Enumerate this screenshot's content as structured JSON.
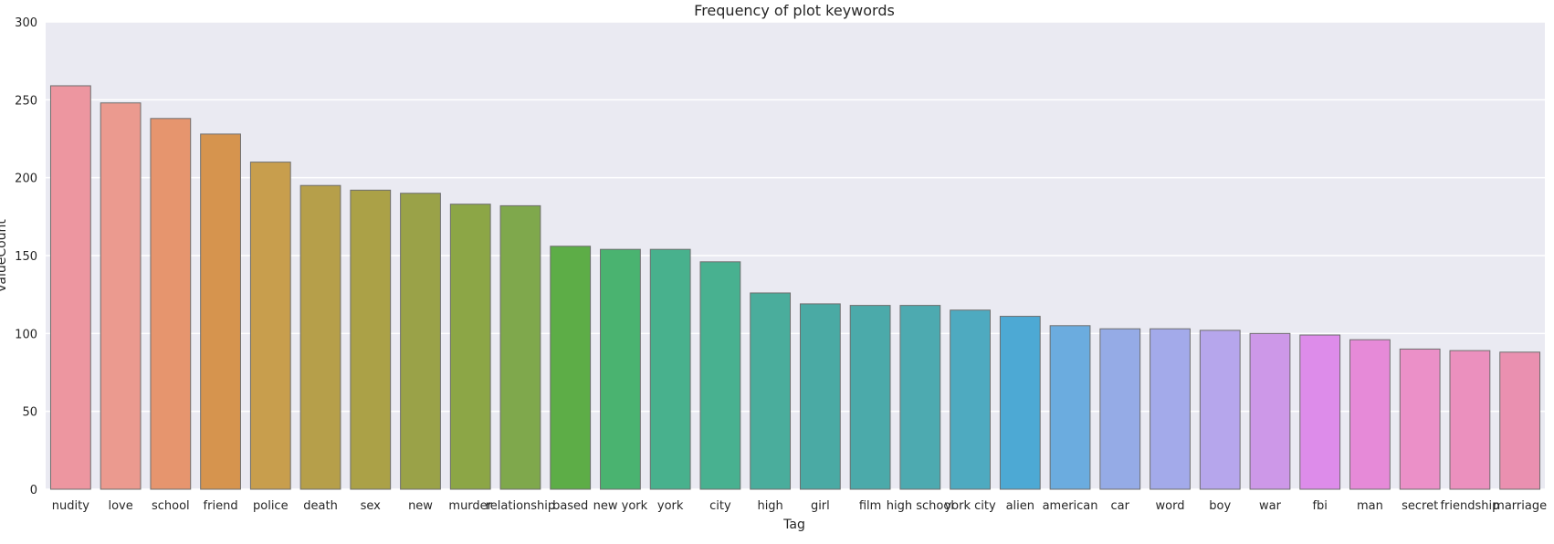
{
  "chart_data": {
    "type": "bar",
    "title": "Frequency of plot keywords",
    "xlabel": "Tag",
    "ylabel": "valueCount",
    "ylim": [
      0,
      300
    ],
    "yticks": [
      0,
      50,
      100,
      150,
      200,
      250,
      300
    ],
    "grid": true,
    "background": "#eaeaf2",
    "categories": [
      "nudity",
      "love",
      "school",
      "friend",
      "police",
      "death",
      "sex",
      "new",
      "murder",
      "relationship",
      "based",
      "new york",
      "york",
      "city",
      "high",
      "girl",
      "film",
      "high school",
      "york city",
      "alien",
      "american",
      "car",
      "word",
      "boy",
      "war",
      "fbi",
      "man",
      "secret",
      "friendship",
      "marriage"
    ],
    "values": [
      259,
      248,
      238,
      228,
      210,
      195,
      192,
      190,
      183,
      182,
      156,
      154,
      154,
      146,
      126,
      119,
      118,
      118,
      115,
      111,
      105,
      103,
      103,
      102,
      100,
      99,
      96,
      90,
      89,
      88
    ],
    "colors": [
      "#ed96a0",
      "#eb9a8f",
      "#e6956e",
      "#d6944e",
      "#c89e4d",
      "#b69f4a",
      "#aba147",
      "#9aa248",
      "#8ca646",
      "#7fa84c",
      "#5dad47",
      "#4ab370",
      "#48b18d",
      "#48b190",
      "#4aad9c",
      "#4aaaa4",
      "#4baaaa",
      "#4daab0",
      "#4eaac0",
      "#4da9d4",
      "#6bacdf",
      "#95abe6",
      "#a3aaea",
      "#b6a6ec",
      "#cd98e8",
      "#dd8cea",
      "#e68ad8",
      "#eb90c8",
      "#eb90be",
      "#ea90b0"
    ]
  }
}
